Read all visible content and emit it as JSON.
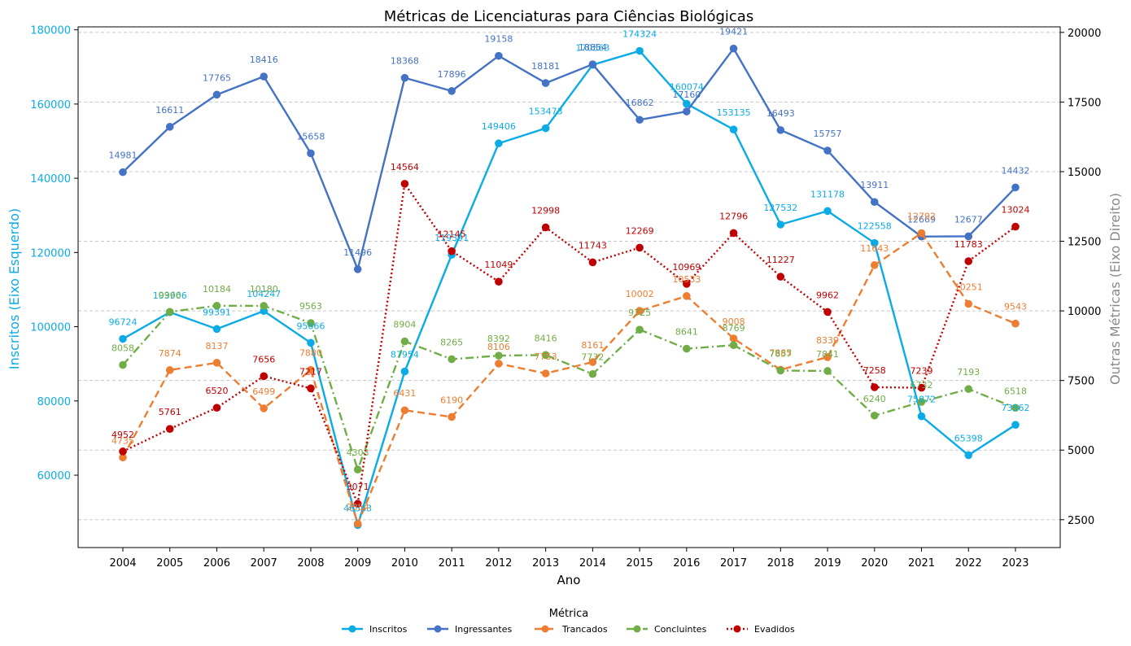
{
  "chart_data": {
    "type": "line",
    "title": "Métricas de Licenciaturas para Ciências Biológicas",
    "xlabel": "Ano",
    "ylabel_left": "Inscritos (Eixo Esquerdo)",
    "ylabel_right": "Outras Métricas (Eixo Direito)",
    "x": [
      2004,
      2005,
      2006,
      2007,
      2008,
      2009,
      2010,
      2011,
      2012,
      2013,
      2014,
      2015,
      2016,
      2017,
      2018,
      2019,
      2020,
      2021,
      2022,
      2023
    ],
    "x_tick_labels": [
      "2004",
      "2005",
      "2006",
      "2007",
      "2008",
      "2009",
      "2010",
      "2011",
      "2012",
      "2013",
      "2014",
      "2015",
      "2016",
      "2017",
      "2018",
      "2019",
      "2020",
      "2021",
      "2022",
      "2023"
    ],
    "ylim_left": [
      40500,
      180800
    ],
    "ylim_right": [
      1500,
      20200
    ],
    "yticks_left": [
      60000,
      80000,
      100000,
      120000,
      140000,
      160000,
      180000
    ],
    "yticks_left_labels": [
      "60000",
      "80000",
      "100000",
      "120000",
      "140000",
      "160000",
      "180000"
    ],
    "yticks_right": [
      2500,
      5000,
      7500,
      10000,
      12500,
      15000,
      17500,
      20000
    ],
    "yticks_right_labels": [
      "2500",
      "5000",
      "7500",
      "10000",
      "12500",
      "15000",
      "17500",
      "20000"
    ],
    "grid": "horizontal dashed (right axis)",
    "legend_title": "Métrica",
    "legend_position": "bottom-center",
    "series": [
      {
        "name": "Inscritos",
        "axis": "left",
        "color": "#0BABE6",
        "style": "solid",
        "values": [
          96724,
          103906,
          99391,
          104247,
          95666,
          46563,
          87954,
          119391,
          149406,
          153473,
          170563,
          174324,
          160074,
          153135,
          127532,
          131178,
          122558,
          75872,
          65398,
          73562
        ],
        "labels": [
          "96724",
          "103906",
          "99391",
          "104247",
          "95666",
          "46563",
          "87954",
          "119391",
          "149406",
          "153473",
          "170563",
          "174324",
          "160074",
          "153135",
          "127532",
          "131178",
          "122558",
          "75872",
          "65398",
          "73562"
        ]
      },
      {
        "name": "Ingressantes",
        "axis": "right",
        "color": "#4472C4",
        "style": "solid",
        "values": [
          14981,
          16611,
          17765,
          18416,
          15658,
          11496,
          18368,
          17896,
          19158,
          18181,
          18854,
          16862,
          17160,
          19421,
          16493,
          15757,
          13911,
          12669,
          12677,
          14432
        ],
        "labels": [
          "14981",
          "16611",
          "17765",
          "18416",
          "15658",
          "11496",
          "18368",
          "17896",
          "19158",
          "18181",
          "18854",
          "16862",
          "17160",
          "19421",
          "16493",
          "15757",
          "13911",
          "12669",
          "12677",
          "14432"
        ]
      },
      {
        "name": "Trancados",
        "axis": "right",
        "color": "#ED7D31",
        "style": "dashed",
        "values": [
          4735,
          7874,
          8137,
          6499,
          7880,
          2354,
          6431,
          6190,
          8106,
          7753,
          8161,
          10002,
          10533,
          9008,
          7885,
          8339,
          11643,
          12792,
          10251,
          9543
        ],
        "labels": [
          "4735",
          "7874",
          "8137",
          "6499",
          "7880",
          "2354",
          "6431",
          "6190",
          "8106",
          "7753",
          "8161",
          "10002",
          "10533",
          "9008",
          "7885",
          "8339",
          "11643",
          "12792",
          "10251",
          "9543"
        ]
      },
      {
        "name": "Concluintes",
        "axis": "right",
        "color": "#70AD47",
        "style": "dashdot",
        "values": [
          8058,
          9966,
          10184,
          10180,
          9563,
          4303,
          8904,
          8265,
          8392,
          8416,
          7732,
          9325,
          8641,
          8769,
          7857,
          7841,
          6240,
          6732,
          7193,
          6518
        ],
        "labels": [
          "8058",
          "9966",
          "10184",
          "10180",
          "9563",
          "4303",
          "8904",
          "8265",
          "8392",
          "8416",
          "7732",
          "9325",
          "8641",
          "8769",
          "7857",
          "7841",
          "6240",
          "6732",
          "7193",
          "6518"
        ]
      },
      {
        "name": "Evadidos",
        "axis": "right",
        "color": "#C00000",
        "style": "dotted",
        "values": [
          4952,
          5761,
          6520,
          7656,
          7217,
          3071,
          14564,
          12145,
          11049,
          12998,
          11743,
          12269,
          10969,
          12796,
          11227,
          9962,
          7258,
          7239,
          11783,
          13024
        ],
        "labels": [
          "4952",
          "5761",
          "6520",
          "7656",
          "7217",
          "3071",
          "14564",
          "12145",
          "11049",
          "12998",
          "11743",
          "12269",
          "10969",
          "12796",
          "11227",
          "9962",
          "7258",
          "7239",
          "11783",
          "13024"
        ]
      }
    ]
  }
}
